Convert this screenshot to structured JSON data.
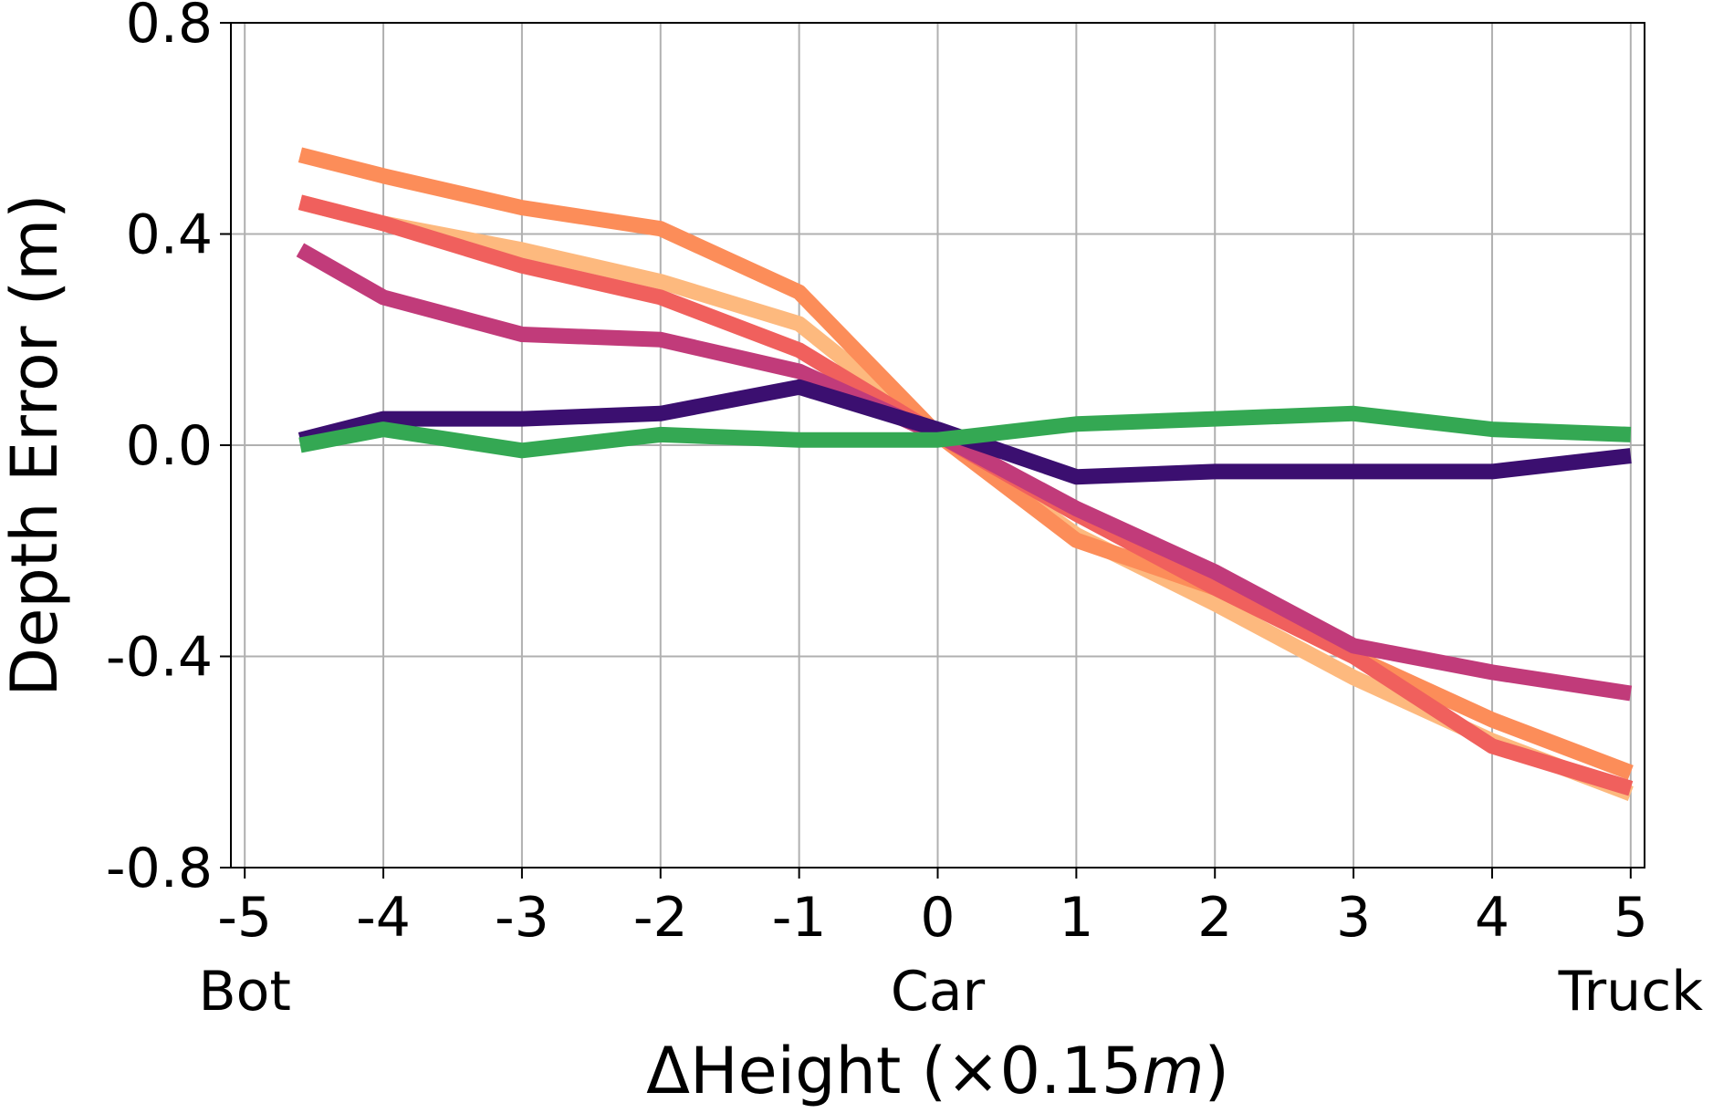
{
  "chart_data": {
    "type": "line",
    "xlabel": "ΔHeight (×0.15m)",
    "xlabel_parts": {
      "prefix": "ΔHeight (×0.15",
      "italic": "m",
      "suffix": ")"
    },
    "ylabel": "Depth Error (m)",
    "xlim": [
      -5.1,
      5.1
    ],
    "ylim": [
      -0.8,
      0.8
    ],
    "xticks": [
      -5,
      -4,
      -3,
      -2,
      -1,
      0,
      1,
      2,
      3,
      4,
      5
    ],
    "xtick_labels": [
      "-5",
      "-4",
      "-3",
      "-2",
      "-1",
      "0",
      "1",
      "2",
      "3",
      "4",
      "5"
    ],
    "yticks": [
      -0.8,
      -0.4,
      0.0,
      0.4,
      0.8
    ],
    "ytick_labels": [
      "-0.8",
      "-0.4",
      "0.0",
      "0.4",
      "0.8"
    ],
    "category_labels": [
      {
        "x": -5,
        "text": "Bot"
      },
      {
        "x": 0,
        "text": "Car"
      },
      {
        "x": 5,
        "text": "Truck"
      }
    ],
    "grid": true,
    "x": [
      -4.6,
      -4,
      -3,
      -2,
      -1,
      0,
      1,
      2,
      3,
      4,
      5
    ],
    "series": [
      {
        "color": "#fdb97e",
        "values": [
          0.46,
          0.42,
          0.37,
          0.31,
          0.23,
          0.02,
          -0.17,
          -0.3,
          -0.44,
          -0.56,
          -0.66
        ]
      },
      {
        "color": "#fc8d59",
        "values": [
          0.55,
          0.51,
          0.45,
          0.41,
          0.29,
          0.02,
          -0.18,
          -0.27,
          -0.4,
          -0.52,
          -0.62
        ]
      },
      {
        "color": "#f0605d",
        "values": [
          0.46,
          0.42,
          0.34,
          0.28,
          0.18,
          0.02,
          -0.13,
          -0.27,
          -0.4,
          -0.57,
          -0.65
        ]
      },
      {
        "color": "#c13b7a",
        "values": [
          0.37,
          0.28,
          0.21,
          0.2,
          0.14,
          0.02,
          -0.12,
          -0.24,
          -0.38,
          -0.43,
          -0.47
        ]
      },
      {
        "color": "#3b0f70",
        "values": [
          0.01,
          0.05,
          0.05,
          0.06,
          0.11,
          0.03,
          -0.06,
          -0.05,
          -0.05,
          -0.05,
          -0.02
        ]
      },
      {
        "color": "#34a853",
        "values": [
          0.0,
          0.03,
          -0.01,
          0.02,
          0.01,
          0.01,
          0.04,
          0.05,
          0.06,
          0.03,
          0.02
        ]
      }
    ]
  }
}
